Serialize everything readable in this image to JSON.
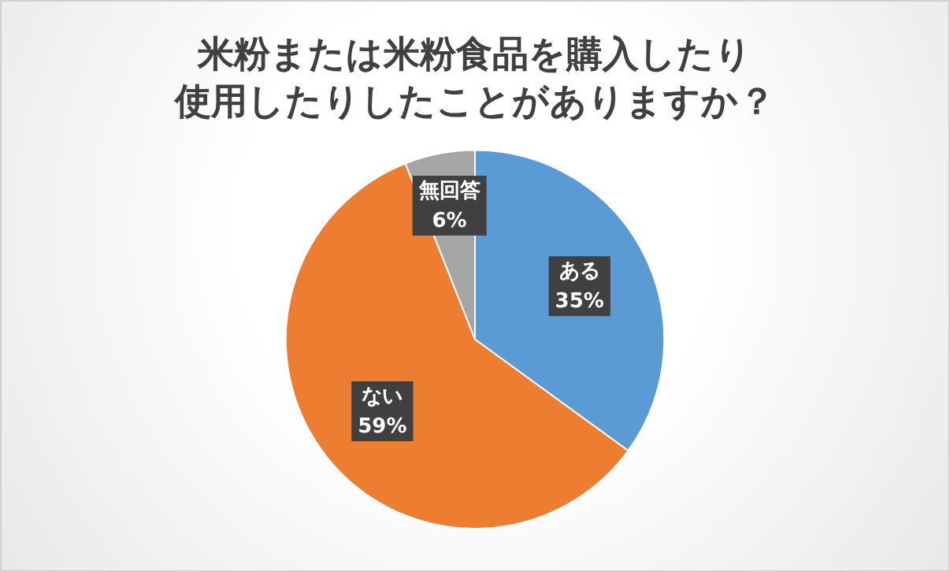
{
  "chart_data": {
    "type": "pie",
    "title": "米粉または米粉食品を購入したり使用したりしたことがありますか？",
    "categories": [
      "ある",
      "ない",
      "無回答"
    ],
    "values": [
      35,
      59,
      6
    ],
    "colors": [
      "#5b9bd5",
      "#ed7d31",
      "#a5a5a5"
    ],
    "value_labels": [
      "35%",
      "59%",
      "6%"
    ],
    "legend": false
  }
}
